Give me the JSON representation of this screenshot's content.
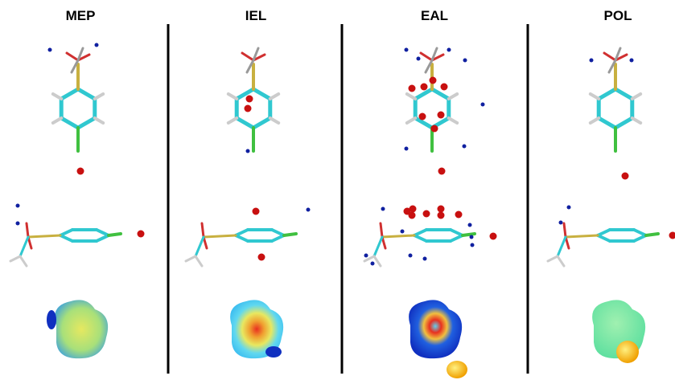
{
  "panels": [
    {
      "title": "MEP"
    },
    {
      "title": "IEL"
    },
    {
      "title": "EAL"
    },
    {
      "title": "POL"
    }
  ]
}
